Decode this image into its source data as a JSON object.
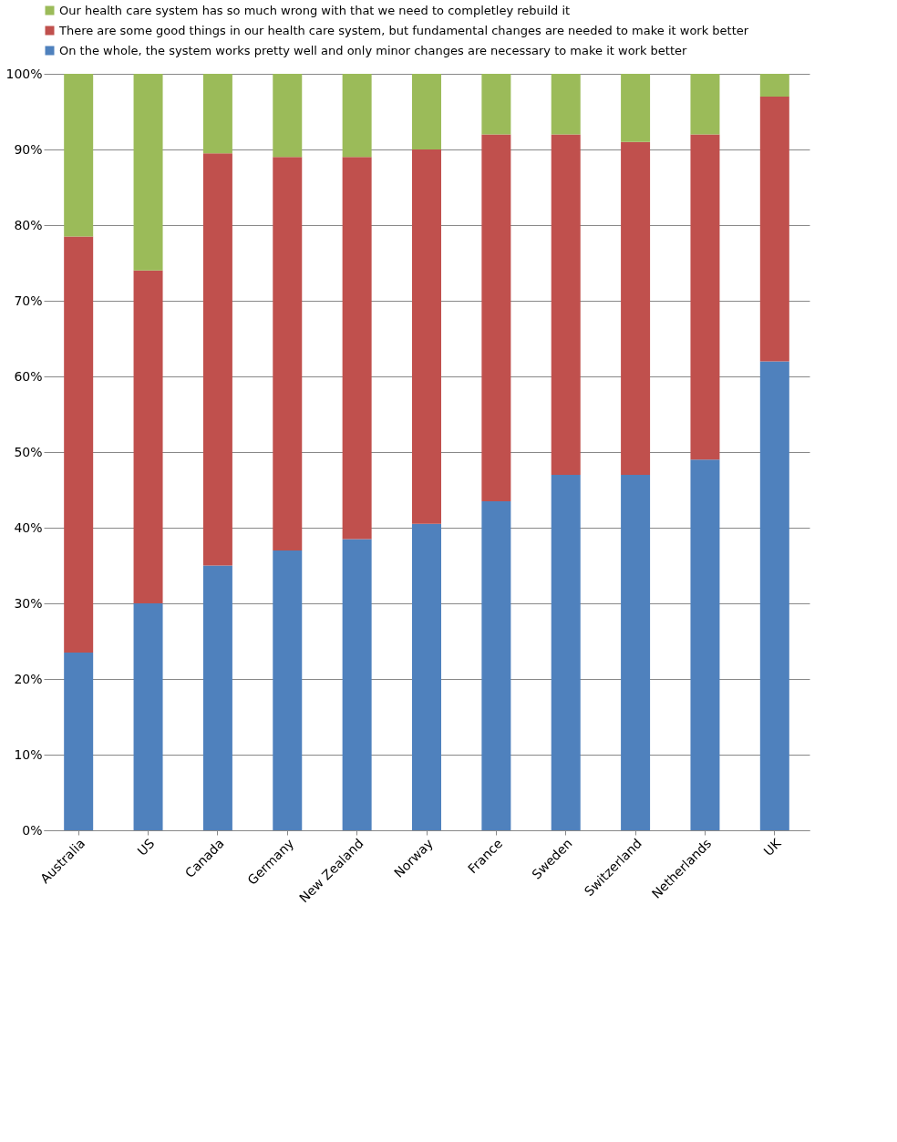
{
  "chart_data": {
    "type": "bar",
    "stacked": true,
    "categories": [
      "Australia",
      "US",
      "Canada",
      "Germany",
      "New Zealand",
      "Norway",
      "France",
      "Sweden",
      "Switzerland",
      "Netherlands",
      "UK"
    ],
    "series": [
      {
        "name": "On the whole, the system works pretty well and only minor changes are necessary to make it work better",
        "color": "#4f81bd",
        "values": [
          23.5,
          30,
          35,
          37,
          38.5,
          40.5,
          43.5,
          47,
          47,
          49,
          62
        ]
      },
      {
        "name": "There are some good things in our health care system, but fundamental changes are needed to make it work better",
        "color": "#c0504d",
        "values": [
          55,
          44,
          54.5,
          52,
          50.5,
          49.5,
          48.5,
          45,
          44,
          43,
          35
        ]
      },
      {
        "name": "Our health care system has so much wrong with that we need to completley rebuild it",
        "color": "#9bbb59",
        "values": [
          21.5,
          26,
          10.5,
          11,
          11,
          10,
          8,
          8,
          9,
          8,
          3
        ]
      }
    ],
    "ylim": [
      0,
      100
    ],
    "yticks": [
      {
        "value": 0,
        "label": "0%"
      },
      {
        "value": 10,
        "label": "10%"
      },
      {
        "value": 20,
        "label": "20%"
      },
      {
        "value": 30,
        "label": "30%"
      },
      {
        "value": 40,
        "label": "40%"
      },
      {
        "value": 50,
        "label": "50%"
      },
      {
        "value": 60,
        "label": "60%"
      },
      {
        "value": 70,
        "label": "70%"
      },
      {
        "value": 80,
        "label": "80%"
      },
      {
        "value": 90,
        "label": "90%"
      },
      {
        "value": 100,
        "label": "100%"
      }
    ],
    "grid": "y",
    "legend": "top"
  }
}
